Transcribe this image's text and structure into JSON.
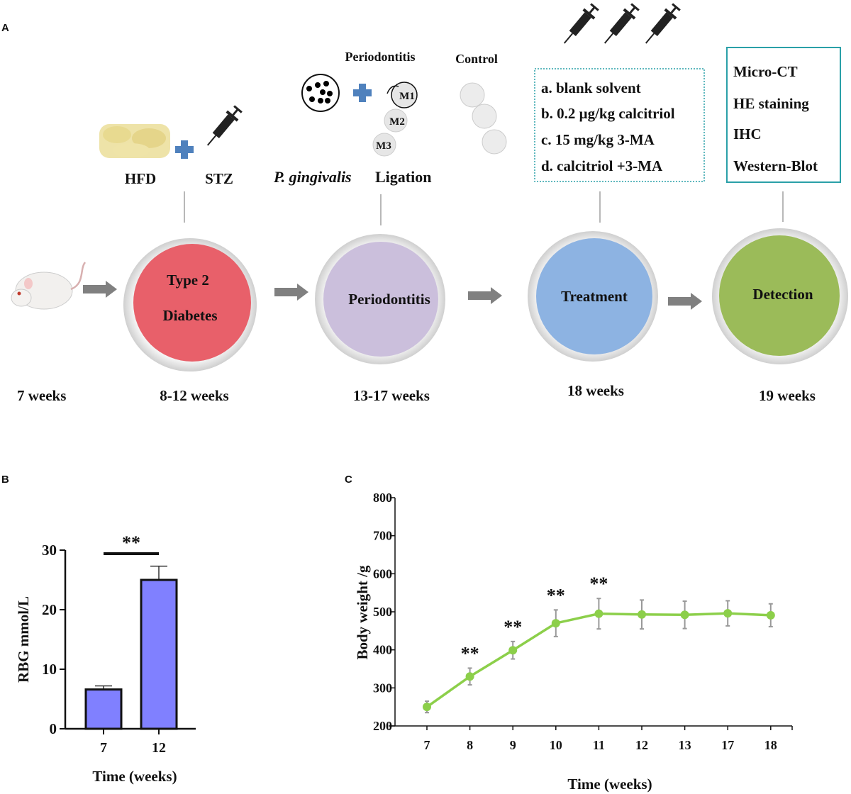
{
  "panels": {
    "a": "A",
    "b": "B",
    "c": "C"
  },
  "timeline": {
    "stages": [
      {
        "label_lines": [
          "Type 2",
          "Diabetes"
        ],
        "time": "8-12 weeks",
        "color": "#e8606a"
      },
      {
        "label_lines": [
          "Periodontitis"
        ],
        "time": "13-17 weeks",
        "color": "#cbbfdc"
      },
      {
        "label_lines": [
          "Treatment"
        ],
        "time": "18 weeks",
        "color": "#8db3e2"
      },
      {
        "label_lines": [
          "Detection"
        ],
        "time": "19 weeks",
        "color": "#9bbb59"
      }
    ],
    "start_time": "7 weeks",
    "induction": {
      "hfd": "HFD",
      "stz": "STZ"
    },
    "periodontitis": {
      "title": "Periodontitis",
      "control": "Control",
      "pathogen": "P. gingivalis",
      "ligation": "Ligation",
      "teeth": [
        "M1",
        "M2",
        "M3"
      ]
    },
    "treatment_groups": [
      "a. blank solvent",
      "b. 0.2 μg/kg calcitriol",
      "c. 15 mg/kg 3-MA",
      "d. calcitriol +3-MA"
    ],
    "detection_methods": [
      "Micro-CT",
      "HE staining",
      "IHC",
      "Western-Blot"
    ],
    "icons": [
      "rat-icon",
      "food-pellets-icon",
      "syringe-icon",
      "plus-icon",
      "bacteria-icon",
      "molar-teeth-icon",
      "arrow-right-icon"
    ]
  },
  "chart_data": [
    {
      "type": "bar",
      "categories": [
        "7",
        "12"
      ],
      "values": [
        6.6,
        25.0
      ],
      "errors": [
        0.6,
        2.3
      ],
      "xlabel": "Time (weeks)",
      "ylabel": "RBG mmol/L",
      "ylim": [
        0,
        30
      ],
      "yticks": [
        0,
        10,
        20,
        30
      ],
      "bar_color": "#8080ff",
      "significance": {
        "between": [
          "7",
          "12"
        ],
        "label": "**"
      }
    },
    {
      "type": "line",
      "x": [
        "7",
        "8",
        "9",
        "10",
        "11",
        "12",
        "13",
        "17",
        "18"
      ],
      "y": [
        250,
        330,
        399,
        470,
        495,
        493,
        492,
        496,
        491
      ],
      "errors": [
        15,
        22,
        23,
        35,
        40,
        38,
        36,
        33,
        30
      ],
      "significance": [
        "",
        "**",
        "**",
        "**",
        "**",
        "",
        "",
        "",
        ""
      ],
      "xlabel": "Time (weeks)",
      "ylabel": "Body weight /g",
      "ylim": [
        200,
        800
      ],
      "yticks": [
        200,
        300,
        400,
        500,
        600,
        700,
        800
      ],
      "line_color": "#8ccf4a",
      "error_color": "#999999"
    }
  ]
}
